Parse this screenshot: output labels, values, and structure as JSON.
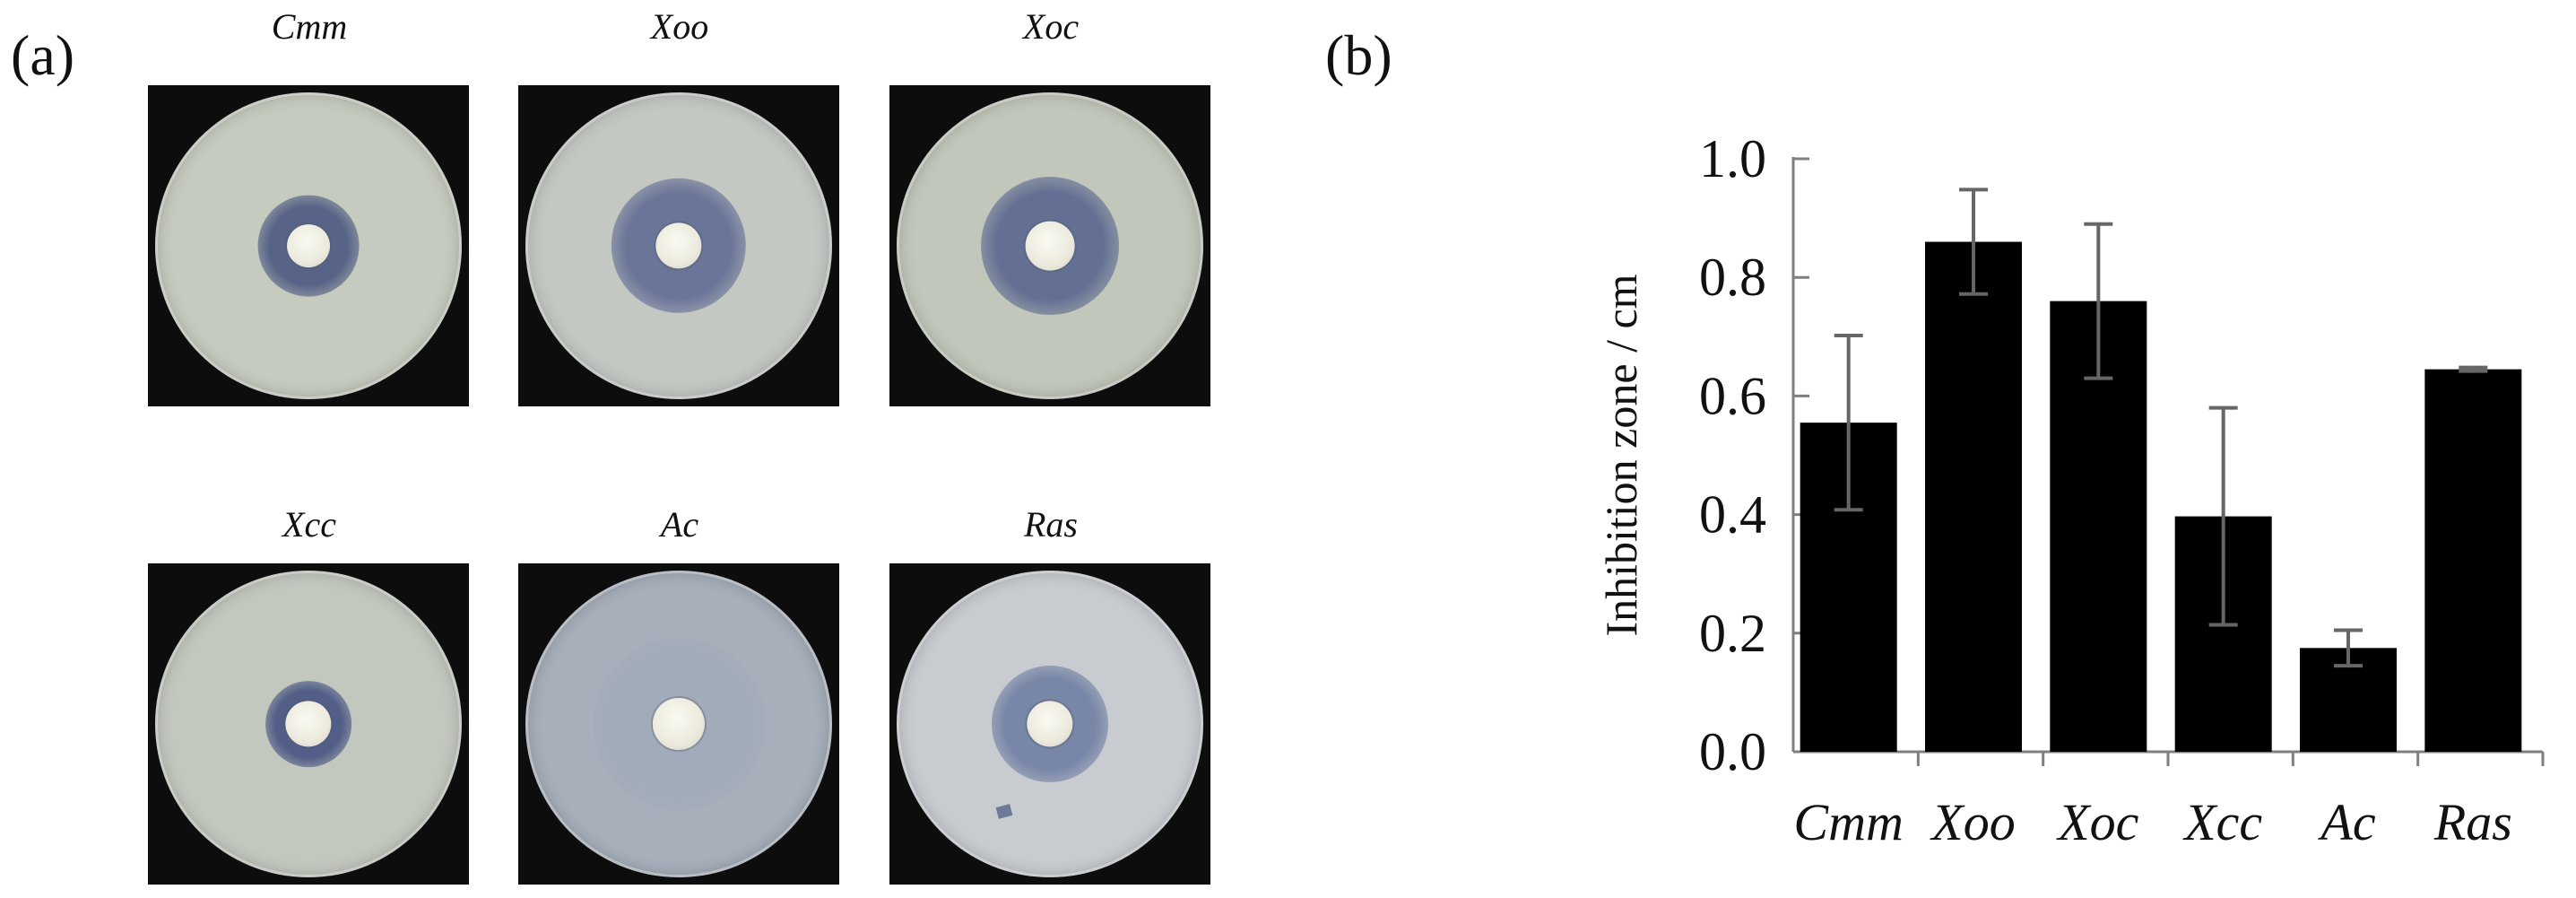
{
  "panel_labels": {
    "a": "(a)",
    "b": "(b)"
  },
  "plates": [
    {
      "name": "Cmm",
      "colors": {
        "agar": "#c6cbbf",
        "halo": "#44527d",
        "disc": "#b7bcc7"
      }
    },
    {
      "name": "Xoo",
      "colors": {
        "agar": "#c4c8c3",
        "halo": "#5a6690",
        "disc": "#f6f4ea"
      }
    },
    {
      "name": "Xoc",
      "colors": {
        "agar": "#c2c7bb",
        "halo": "#53618c",
        "disc": "#f3f1e6"
      }
    },
    {
      "name": "Xcc",
      "colors": {
        "agar": "#c3c8bf",
        "halo": "#3e4c7d",
        "disc": "#f0efe6"
      }
    },
    {
      "name": "Ac",
      "colors": {
        "agar": "#a7afbb",
        "halo": "#9aa3b6",
        "disc": "#dfe2d8"
      }
    },
    {
      "name": "Ras",
      "colors": {
        "agar": "#c8ccd0",
        "halo": "#6a7aa0",
        "disc": "#dcdfd8"
      }
    }
  ],
  "chart_data": {
    "type": "bar",
    "categories": [
      "Cmm",
      "Xoo",
      "Xoc",
      "Xcc",
      "Ac",
      "Ras"
    ],
    "values": [
      0.555,
      0.86,
      0.76,
      0.397,
      0.175,
      0.645
    ],
    "error": [
      0.147,
      0.088,
      0.13,
      0.183,
      0.03,
      0.003
    ],
    "ylabel": "Inhibition  zone  / cm",
    "xlabel": "",
    "ylim": [
      0.0,
      1.0
    ],
    "yticks": [
      "0.0",
      "0.2",
      "0.4",
      "0.6",
      "0.8",
      "1.0"
    ],
    "grid": false,
    "colors": {
      "bar": "#000000",
      "error_bar": "#666666",
      "axis": "#7f7f7f"
    }
  }
}
